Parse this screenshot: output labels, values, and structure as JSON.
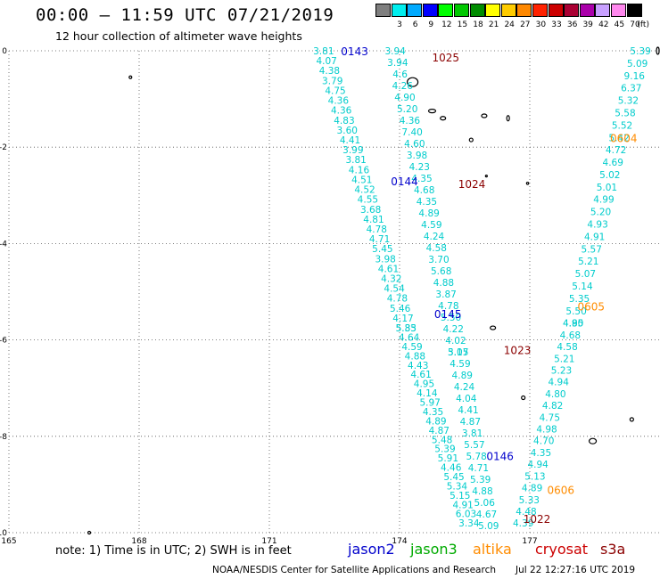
{
  "header": {
    "title": "00:00 – 11:59 UTC 07/21/2019",
    "subtitle": "12 hour collection of altimeter wave heights"
  },
  "legend": {
    "unit": "(ft)",
    "bins": [
      {
        "label": "3",
        "color": "#7f7f7f"
      },
      {
        "label": "6",
        "color": "#00eeee"
      },
      {
        "label": "9",
        "color": "#00aaff"
      },
      {
        "label": "12",
        "color": "#0000ff"
      },
      {
        "label": "15",
        "color": "#00ff00"
      },
      {
        "label": "18",
        "color": "#00c800"
      },
      {
        "label": "21",
        "color": "#008c00"
      },
      {
        "label": "24",
        "color": "#ffff00"
      },
      {
        "label": "27",
        "color": "#ffcc00"
      },
      {
        "label": "30",
        "color": "#ff8800"
      },
      {
        "label": "33",
        "color": "#ff2200"
      },
      {
        "label": "36",
        "color": "#cc0000"
      },
      {
        "label": "39",
        "color": "#aa0033"
      },
      {
        "label": "42",
        "color": "#aa00aa"
      },
      {
        "label": "45",
        "color": "#c8a0ff"
      },
      {
        "label": "70",
        "color": "#ff88ee"
      },
      {
        "label": "",
        "color": "#000000"
      }
    ]
  },
  "map_data": {
    "lon_range": [
      165,
      180
    ],
    "lat_range": [
      -10,
      0
    ],
    "lon_ticks": [
      {
        "value": 165,
        "label": "165"
      },
      {
        "value": 168,
        "label": "168"
      },
      {
        "value": 171,
        "label": "171"
      },
      {
        "value": 174,
        "label": "174"
      },
      {
        "value": 177,
        "label": "177"
      }
    ],
    "lat_ticks": [
      {
        "value": 0,
        "label": "0"
      },
      {
        "value": -2,
        "label": "-2"
      },
      {
        "value": -4,
        "label": "-4"
      },
      {
        "value": -6,
        "label": "-6"
      },
      {
        "value": -8,
        "label": "-8"
      },
      {
        "value": -10,
        "label": "-10"
      }
    ],
    "value_color": "#00cccc",
    "time_labels": [
      {
        "text": "0143",
        "lon": 172.65,
        "lat": 0.0,
        "color": "#0000cc"
      },
      {
        "text": "1025",
        "lon": 174.75,
        "lat": -0.13,
        "color": "#8b0000"
      },
      {
        "text": "0144",
        "lon": 173.8,
        "lat": -2.7,
        "color": "#0000cc"
      },
      {
        "text": "1024",
        "lon": 175.35,
        "lat": -2.75,
        "color": "#8b0000"
      },
      {
        "text": "0145",
        "lon": 174.8,
        "lat": -5.45,
        "color": "#0000cc"
      },
      {
        "text": "1023",
        "lon": 176.4,
        "lat": -6.2,
        "color": "#8b0000"
      },
      {
        "text": "0146",
        "lon": 176.0,
        "lat": -8.4,
        "color": "#0000cc"
      },
      {
        "text": "1022",
        "lon": 176.85,
        "lat": -9.7,
        "color": "#8b0000"
      },
      {
        "text": "0605",
        "lon": 178.1,
        "lat": -5.3,
        "color": "#ff8c00"
      },
      {
        "text": "0606",
        "lon": 177.4,
        "lat": -9.1,
        "color": "#ff8c00"
      },
      {
        "text": "0604",
        "lon": 178.85,
        "lat": -1.8,
        "color": "#ff8c00"
      }
    ],
    "tracks": [
      {
        "id": "t1",
        "start": [
          172.25,
          0.0
        ],
        "end": [
          174.15,
          -5.75
        ],
        "values": [
          "3.81",
          "4.07",
          "4.38",
          "3.79",
          "4.75",
          "4.36",
          "4.36",
          "4.83",
          "3.60",
          "4.41",
          "3.99",
          "3.81",
          "4.16",
          "4.51",
          "4.52",
          "4.55",
          "3.68",
          "4.81",
          "4.78",
          "4.71",
          "5.45",
          "3.98",
          "4.61",
          "4.32",
          "4.54",
          "4.78",
          "5.46",
          "4.17",
          "5.83"
        ]
      },
      {
        "id": "t2",
        "start": [
          174.15,
          -5.75
        ],
        "end": [
          175.6,
          -9.8
        ],
        "values": [
          "5.35",
          "4.64",
          "4.59",
          "4.88",
          "4.43",
          "4.61",
          "4.95",
          "4.14",
          "5.97",
          "4.35",
          "4.89",
          "4.87",
          "5.48",
          "5.39",
          "5.91",
          "4.46",
          "5.45",
          "5.34",
          "5.15",
          "4.91",
          "6.03",
          "3.34"
        ]
      },
      {
        "id": "t3",
        "start": [
          173.9,
          0.0
        ],
        "end": [
          175.35,
          -6.25
        ],
        "values": [
          "3.94",
          "3.94",
          "4.6",
          "4.26",
          "4.90",
          "5.20",
          "4.36",
          "7.40",
          "4.60",
          "3.98",
          "4.23",
          "4.35",
          "4.68",
          "4.35",
          "4.89",
          "4.59",
          "4.24",
          "4.58",
          "3.70",
          "5.68",
          "4.88",
          "3.87",
          "4.78",
          "5.50",
          "4.22",
          "4.02",
          "3.17"
        ]
      },
      {
        "id": "t4",
        "start": [
          175.35,
          -6.25
        ],
        "end": [
          176.05,
          -9.85
        ],
        "values": [
          "5.05",
          "4.59",
          "4.89",
          "4.24",
          "4.04",
          "4.41",
          "4.87",
          "3.81",
          "5.57",
          "5.78",
          "4.71",
          "5.39",
          "4.88",
          "5.06",
          "4.67",
          "5.09"
        ]
      },
      {
        "id": "t5",
        "start": [
          179.55,
          0.0
        ],
        "end": [
          178.0,
          -5.65
        ],
        "values": [
          "5.39",
          "5.09",
          "9.16",
          "6.37",
          "5.32",
          "5.58",
          "5.52",
          "5.42",
          "4.72",
          "4.69",
          "5.02",
          "5.01",
          "4.99",
          "5.20",
          "4.93",
          "4.91",
          "5.57",
          "5.21",
          "5.07",
          "5.14",
          "5.35",
          "5.50",
          "4.80"
        ]
      },
      {
        "id": "t6",
        "start": [
          178.0,
          -5.65
        ],
        "end": [
          176.85,
          -9.8
        ],
        "values": [
          "4.95",
          "4.68",
          "4.58",
          "5.21",
          "5.23",
          "4.94",
          "4.80",
          "4.82",
          "4.75",
          "4.98",
          "4.70",
          "4.35",
          "4.94",
          "5.13",
          "4.89",
          "5.33",
          "4.48",
          "4.39"
        ]
      }
    ],
    "islands": [
      {
        "lon": 167.8,
        "lat": -0.55,
        "rx": 1.5,
        "ry": 1.5
      },
      {
        "lon": 174.3,
        "lat": -0.65,
        "rx": 6,
        "ry": 5
      },
      {
        "lon": 174.75,
        "lat": -1.25,
        "rx": 4,
        "ry": 2
      },
      {
        "lon": 175.0,
        "lat": -1.4,
        "rx": 3,
        "ry": 2
      },
      {
        "lon": 175.95,
        "lat": -1.35,
        "rx": 3,
        "ry": 2
      },
      {
        "lon": 176.5,
        "lat": -1.4,
        "rx": 1.5,
        "ry": 3
      },
      {
        "lon": 175.65,
        "lat": -1.85,
        "rx": 2,
        "ry": 2
      },
      {
        "lon": 176.0,
        "lat": -2.6,
        "rx": 1,
        "ry": 1
      },
      {
        "lon": 176.95,
        "lat": -2.75,
        "rx": 1.2,
        "ry": 1.2
      },
      {
        "lon": 176.15,
        "lat": -5.75,
        "rx": 3,
        "ry": 2
      },
      {
        "lon": 176.85,
        "lat": -7.2,
        "rx": 2,
        "ry": 2
      },
      {
        "lon": 179.35,
        "lat": -7.65,
        "rx": 2,
        "ry": 2
      },
      {
        "lon": 178.45,
        "lat": -8.1,
        "rx": 4,
        "ry": 3
      },
      {
        "lon": 179.95,
        "lat": -0.0,
        "rx": 1.5,
        "ry": 4
      },
      {
        "lon": 166.85,
        "lat": -10.0,
        "rx": 1.5,
        "ry": 1.5
      }
    ]
  },
  "footer": {
    "note": "note: 1) Time is in UTC; 2) SWH is in feet",
    "satellites": [
      {
        "name": "jason2",
        "color": "#0000cc"
      },
      {
        "name": "jason3",
        "color": "#00aa00"
      },
      {
        "name": "altika",
        "color": "#ff8c00"
      },
      {
        "name": "cryosat",
        "color": "#cc0000"
      },
      {
        "name": "s3a",
        "color": "#8b0000"
      }
    ],
    "credit": "NOAA/NESDIS Center for Satellite Applications and Research",
    "timestamp": "Jul 22 12:27:16 UTC 2019"
  }
}
